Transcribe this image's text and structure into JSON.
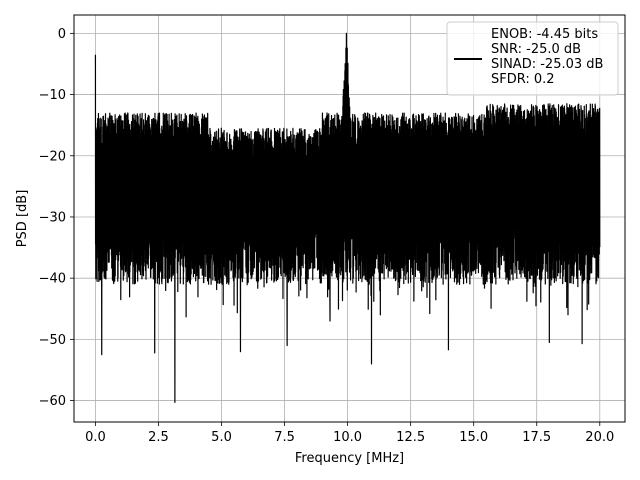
{
  "chart_data": {
    "type": "line",
    "title": "",
    "xlabel": "Frequency [MHz]",
    "ylabel": "PSD [dB]",
    "xlim": [
      -0.85,
      21.0
    ],
    "ylim": [
      -63.5,
      3.0
    ],
    "x_ticks": [
      0.0,
      2.5,
      5.0,
      7.5,
      10.0,
      12.5,
      15.0,
      17.5,
      20.0
    ],
    "x_tick_labels": [
      "0.0",
      "2.5",
      "5.0",
      "7.5",
      "10.0",
      "12.5",
      "15.0",
      "17.5",
      "20.0"
    ],
    "y_ticks": [
      0,
      -10,
      -20,
      -30,
      -40,
      -50,
      -60
    ],
    "y_tick_labels": [
      "0",
      "−10",
      "−20",
      "−30",
      "−40",
      "−50",
      "−60"
    ],
    "grid": true,
    "legend_position": "top-right",
    "line_color": "#000000",
    "legend_entries": [
      "ENOB: -4.45 bits",
      "SNR: -25.0 dB",
      "SINAD: -25.03 dB",
      "SFDR: 0.2"
    ],
    "series": [
      {
        "x_range": [
          0.0,
          20.0
        ],
        "peak": {
          "x": 9.95,
          "y": 0.0
        },
        "dc_value": -3.5,
        "upper_envelope_db": -13.0,
        "typical_floor_db": -37.0,
        "notable_dips": [
          {
            "x": 0.25,
            "y": -52.5
          },
          {
            "x": 2.35,
            "y": -52.2
          },
          {
            "x": 3.15,
            "y": -60.3
          },
          {
            "x": 5.75,
            "y": -52.0
          },
          {
            "x": 7.6,
            "y": -51.0
          },
          {
            "x": 10.95,
            "y": -54.0
          },
          {
            "x": 14.0,
            "y": -51.7
          },
          {
            "x": 18.0,
            "y": -50.5
          },
          {
            "x": 19.3,
            "y": -50.7
          },
          {
            "x": 9.3,
            "y": -47.0
          },
          {
            "x": 11.3,
            "y": -46.0
          }
        ]
      }
    ]
  }
}
